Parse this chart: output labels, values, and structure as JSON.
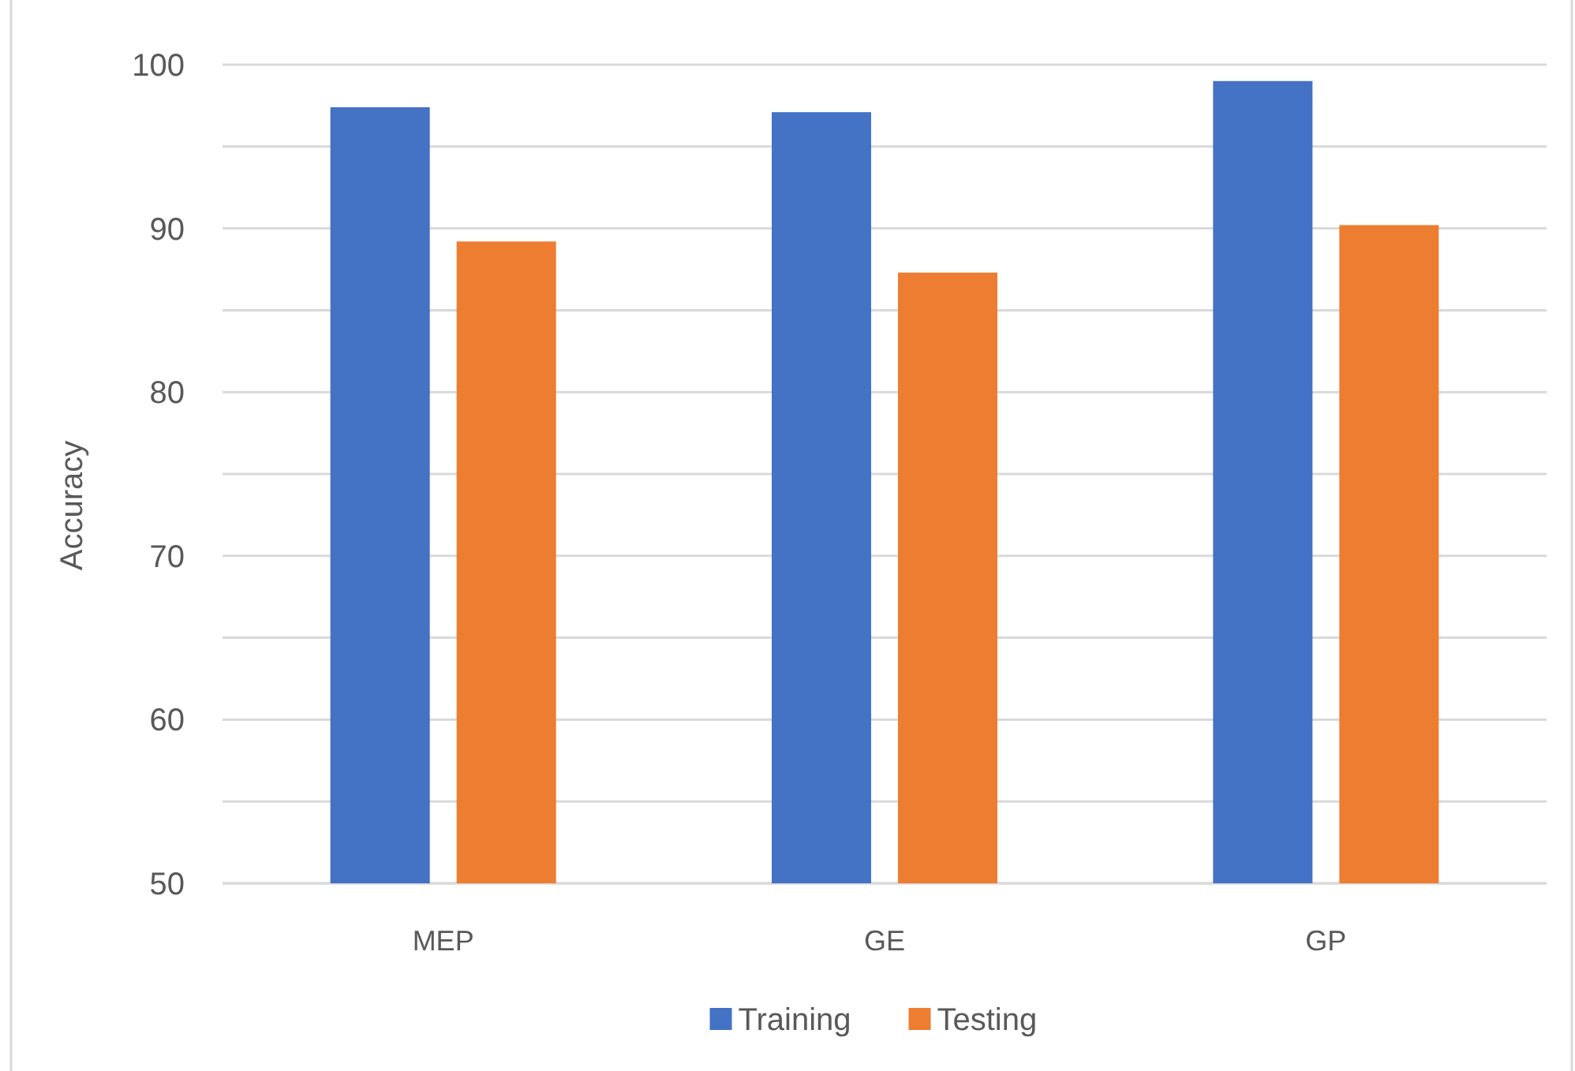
{
  "chart_data": {
    "type": "bar",
    "ylabel": "Accuracy",
    "categories": [
      "MEP",
      "GE",
      "GP"
    ],
    "series": [
      {
        "name": "Training",
        "color": "#4472c4",
        "values": [
          97.4,
          97.1,
          99.0
        ]
      },
      {
        "name": "Testing",
        "color": "#ed7d31",
        "values": [
          89.2,
          87.3,
          90.2
        ]
      }
    ],
    "ylim": [
      50,
      100
    ],
    "yticks": [
      50,
      {
        "value": 55,
        "label": null
      },
      60,
      {
        "value": 65,
        "label": null
      },
      70,
      {
        "value": 75,
        "label": null
      },
      80,
      {
        "value": 85,
        "label": null
      },
      90,
      {
        "value": 95,
        "label": null
      },
      100
    ],
    "grid": true,
    "legend": "bottom"
  }
}
